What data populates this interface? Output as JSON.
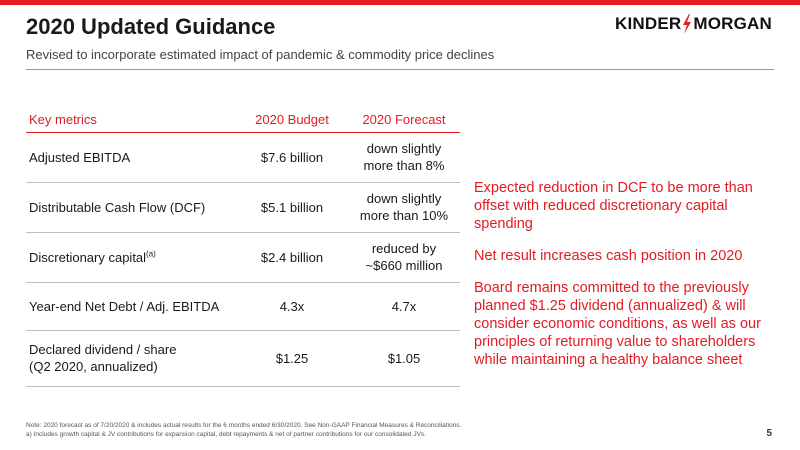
{
  "header": {
    "title": "2020 Updated Guidance",
    "subtitle": "Revised to incorporate estimated impact of pandemic & commodity price declines",
    "logo_left": "KINDER",
    "logo_right": "MORGAN"
  },
  "table": {
    "headers": [
      "Key metrics",
      "2020 Budget",
      "2020 Forecast"
    ],
    "rows": [
      {
        "metric": "Adjusted EBITDA",
        "footnote": "",
        "budget": "$7.6 billion",
        "forecast": "down slightly\nmore than 8%"
      },
      {
        "metric": "Distributable Cash Flow (DCF)",
        "footnote": "",
        "budget": "$5.1 billion",
        "forecast": "down slightly\nmore than 10%"
      },
      {
        "metric": "Discretionary capital",
        "footnote": "(a)",
        "budget": "$2.4 billion",
        "forecast": "reduced by\n~$660 million"
      },
      {
        "metric": "Year-end Net Debt / Adj. EBITDA",
        "footnote": "",
        "budget": "4.3x",
        "forecast": "4.7x"
      },
      {
        "metric": "Declared dividend / share\n(Q2 2020, annualized)",
        "footnote": "",
        "budget": "$1.25",
        "forecast": "$1.05"
      }
    ]
  },
  "notes": [
    "Expected reduction in DCF to be more than offset with reduced discretionary capital spending",
    "Net result increases cash position in 2020",
    "Board remains committed to the previously planned $1.25 dividend (annualized) & will consider economic conditions, as well as our principles of returning value to shareholders while maintaining a healthy balance sheet"
  ],
  "footnotes": {
    "note": "Note: 2020 forecast as of 7/20/2020 & includes actual results for the 6 months ended 6/30/2020. See Non-GAAP Financial Measures & Reconciliations.",
    "a": "a)   Includes growth capital & JV contributions for expansion capital, debt repayments & net of partner contributions for our consolidated JVs."
  },
  "page_number": "5",
  "colors": {
    "accent": "#e31b23",
    "text": "#1a1a1a",
    "rule": "#bfbfbf"
  }
}
